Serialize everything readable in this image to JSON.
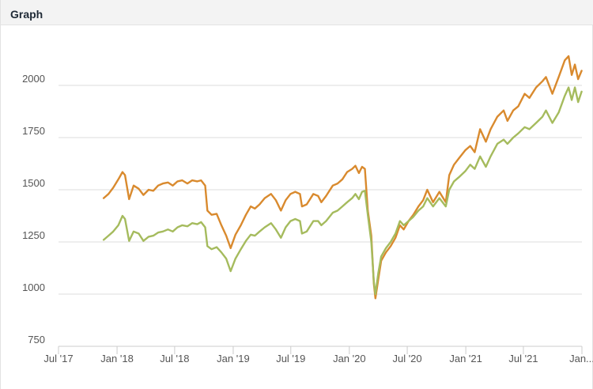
{
  "panel": {
    "title": "Graph"
  },
  "chart_data": {
    "type": "line",
    "title": "",
    "xlabel": "",
    "ylabel": "",
    "ylim": [
      750,
      2250
    ],
    "xlim": [
      "2017-07-01",
      "2022-01-01"
    ],
    "y_ticks": [
      {
        "value": 750,
        "label": "750"
      },
      {
        "value": 1000,
        "label": "1000"
      },
      {
        "value": 1250,
        "label": "1250"
      },
      {
        "value": 1500,
        "label": "1500"
      },
      {
        "value": 1750,
        "label": "1750"
      },
      {
        "value": 2000,
        "label": "2000"
      }
    ],
    "x_ticks": [
      {
        "date": "2017-07-01",
        "label": "Jul '17"
      },
      {
        "date": "2018-01-01",
        "label": "Jan '18"
      },
      {
        "date": "2018-07-01",
        "label": "Jul '18"
      },
      {
        "date": "2019-01-01",
        "label": "Jan '19"
      },
      {
        "date": "2019-07-01",
        "label": "Jul '19"
      },
      {
        "date": "2020-01-01",
        "label": "Jan '20"
      },
      {
        "date": "2020-07-01",
        "label": "Jul '20"
      },
      {
        "date": "2021-01-01",
        "label": "Jan '21"
      },
      {
        "date": "2021-07-01",
        "label": "Jul '21"
      },
      {
        "date": "2022-01-01",
        "label": "Jan..."
      }
    ],
    "grid": true,
    "legend": "none",
    "series": [
      {
        "color": "#d98a2e",
        "points": [
          [
            "2017-11-20",
            1460
          ],
          [
            "2017-12-05",
            1480
          ],
          [
            "2017-12-20",
            1510
          ],
          [
            "2018-01-05",
            1550
          ],
          [
            "2018-01-18",
            1585
          ],
          [
            "2018-01-26",
            1570
          ],
          [
            "2018-02-08",
            1455
          ],
          [
            "2018-02-22",
            1520
          ],
          [
            "2018-03-10",
            1505
          ],
          [
            "2018-03-25",
            1475
          ],
          [
            "2018-04-10",
            1500
          ],
          [
            "2018-04-25",
            1495
          ],
          [
            "2018-05-10",
            1520
          ],
          [
            "2018-05-25",
            1530
          ],
          [
            "2018-06-10",
            1535
          ],
          [
            "2018-06-25",
            1520
          ],
          [
            "2018-07-10",
            1540
          ],
          [
            "2018-07-25",
            1545
          ],
          [
            "2018-08-10",
            1530
          ],
          [
            "2018-08-25",
            1545
          ],
          [
            "2018-09-10",
            1540
          ],
          [
            "2018-09-22",
            1545
          ],
          [
            "2018-10-05",
            1520
          ],
          [
            "2018-10-12",
            1400
          ],
          [
            "2018-10-25",
            1380
          ],
          [
            "2018-11-10",
            1385
          ],
          [
            "2018-11-25",
            1330
          ],
          [
            "2018-12-10",
            1280
          ],
          [
            "2018-12-24",
            1220
          ],
          [
            "2019-01-08",
            1285
          ],
          [
            "2019-01-25",
            1330
          ],
          [
            "2019-02-10",
            1380
          ],
          [
            "2019-02-25",
            1420
          ],
          [
            "2019-03-10",
            1410
          ],
          [
            "2019-03-25",
            1430
          ],
          [
            "2019-04-10",
            1460
          ],
          [
            "2019-04-30",
            1480
          ],
          [
            "2019-05-15",
            1450
          ],
          [
            "2019-05-31",
            1400
          ],
          [
            "2019-06-15",
            1450
          ],
          [
            "2019-06-30",
            1480
          ],
          [
            "2019-07-15",
            1490
          ],
          [
            "2019-07-30",
            1480
          ],
          [
            "2019-08-05",
            1420
          ],
          [
            "2019-08-20",
            1430
          ],
          [
            "2019-09-10",
            1480
          ],
          [
            "2019-09-25",
            1470
          ],
          [
            "2019-10-05",
            1440
          ],
          [
            "2019-10-20",
            1470
          ],
          [
            "2019-11-10",
            1520
          ],
          [
            "2019-11-25",
            1530
          ],
          [
            "2019-12-10",
            1550
          ],
          [
            "2019-12-25",
            1585
          ],
          [
            "2020-01-10",
            1600
          ],
          [
            "2020-01-20",
            1615
          ],
          [
            "2020-01-31",
            1580
          ],
          [
            "2020-02-10",
            1610
          ],
          [
            "2020-02-19",
            1600
          ],
          [
            "2020-02-28",
            1400
          ],
          [
            "2020-03-10",
            1280
          ],
          [
            "2020-03-18",
            1050
          ],
          [
            "2020-03-23",
            980
          ],
          [
            "2020-04-01",
            1070
          ],
          [
            "2020-04-10",
            1160
          ],
          [
            "2020-04-25",
            1200
          ],
          [
            "2020-05-10",
            1230
          ],
          [
            "2020-05-25",
            1270
          ],
          [
            "2020-06-08",
            1330
          ],
          [
            "2020-06-20",
            1310
          ],
          [
            "2020-07-05",
            1350
          ],
          [
            "2020-07-20",
            1380
          ],
          [
            "2020-08-05",
            1420
          ],
          [
            "2020-08-20",
            1450
          ],
          [
            "2020-09-02",
            1500
          ],
          [
            "2020-09-20",
            1440
          ],
          [
            "2020-10-10",
            1490
          ],
          [
            "2020-10-30",
            1440
          ],
          [
            "2020-11-10",
            1570
          ],
          [
            "2020-11-25",
            1620
          ],
          [
            "2020-12-10",
            1650
          ],
          [
            "2020-12-31",
            1690
          ],
          [
            "2021-01-15",
            1710
          ],
          [
            "2021-01-29",
            1680
          ],
          [
            "2021-02-15",
            1790
          ],
          [
            "2021-03-05",
            1730
          ],
          [
            "2021-03-20",
            1790
          ],
          [
            "2021-04-10",
            1850
          ],
          [
            "2021-04-30",
            1880
          ],
          [
            "2021-05-12",
            1830
          ],
          [
            "2021-05-30",
            1880
          ],
          [
            "2021-06-15",
            1900
          ],
          [
            "2021-07-05",
            1960
          ],
          [
            "2021-07-20",
            1940
          ],
          [
            "2021-08-10",
            1990
          ],
          [
            "2021-08-30",
            2020
          ],
          [
            "2021-09-10",
            2040
          ],
          [
            "2021-09-30",
            1960
          ],
          [
            "2021-10-20",
            2040
          ],
          [
            "2021-11-08",
            2120
          ],
          [
            "2021-11-20",
            2140
          ],
          [
            "2021-11-30",
            2050
          ],
          [
            "2021-12-10",
            2100
          ],
          [
            "2021-12-20",
            2030
          ],
          [
            "2021-12-31",
            2070
          ]
        ]
      },
      {
        "color": "#a5bb5d",
        "points": [
          [
            "2017-11-20",
            1260
          ],
          [
            "2017-12-05",
            1280
          ],
          [
            "2017-12-20",
            1300
          ],
          [
            "2018-01-05",
            1330
          ],
          [
            "2018-01-18",
            1375
          ],
          [
            "2018-01-26",
            1360
          ],
          [
            "2018-02-08",
            1255
          ],
          [
            "2018-02-22",
            1300
          ],
          [
            "2018-03-10",
            1290
          ],
          [
            "2018-03-25",
            1255
          ],
          [
            "2018-04-10",
            1275
          ],
          [
            "2018-04-25",
            1280
          ],
          [
            "2018-05-10",
            1295
          ],
          [
            "2018-05-25",
            1300
          ],
          [
            "2018-06-10",
            1310
          ],
          [
            "2018-06-25",
            1300
          ],
          [
            "2018-07-10",
            1320
          ],
          [
            "2018-07-25",
            1330
          ],
          [
            "2018-08-10",
            1325
          ],
          [
            "2018-08-25",
            1340
          ],
          [
            "2018-09-10",
            1335
          ],
          [
            "2018-09-22",
            1345
          ],
          [
            "2018-10-05",
            1320
          ],
          [
            "2018-10-12",
            1230
          ],
          [
            "2018-10-25",
            1215
          ],
          [
            "2018-11-10",
            1225
          ],
          [
            "2018-11-25",
            1200
          ],
          [
            "2018-12-10",
            1170
          ],
          [
            "2018-12-24",
            1110
          ],
          [
            "2019-01-08",
            1170
          ],
          [
            "2019-01-25",
            1215
          ],
          [
            "2019-02-10",
            1255
          ],
          [
            "2019-02-25",
            1285
          ],
          [
            "2019-03-10",
            1280
          ],
          [
            "2019-03-25",
            1300
          ],
          [
            "2019-04-10",
            1320
          ],
          [
            "2019-04-30",
            1340
          ],
          [
            "2019-05-15",
            1310
          ],
          [
            "2019-05-31",
            1270
          ],
          [
            "2019-06-15",
            1320
          ],
          [
            "2019-06-30",
            1350
          ],
          [
            "2019-07-15",
            1360
          ],
          [
            "2019-07-30",
            1350
          ],
          [
            "2019-08-05",
            1290
          ],
          [
            "2019-08-20",
            1300
          ],
          [
            "2019-09-10",
            1350
          ],
          [
            "2019-09-25",
            1350
          ],
          [
            "2019-10-05",
            1330
          ],
          [
            "2019-10-20",
            1350
          ],
          [
            "2019-11-10",
            1390
          ],
          [
            "2019-11-25",
            1400
          ],
          [
            "2019-12-10",
            1420
          ],
          [
            "2019-12-25",
            1440
          ],
          [
            "2020-01-10",
            1460
          ],
          [
            "2020-01-20",
            1480
          ],
          [
            "2020-01-31",
            1455
          ],
          [
            "2020-02-10",
            1490
          ],
          [
            "2020-02-19",
            1495
          ],
          [
            "2020-02-28",
            1380
          ],
          [
            "2020-03-10",
            1250
          ],
          [
            "2020-03-18",
            1060
          ],
          [
            "2020-03-23",
            1000
          ],
          [
            "2020-04-01",
            1100
          ],
          [
            "2020-04-10",
            1180
          ],
          [
            "2020-04-25",
            1220
          ],
          [
            "2020-05-10",
            1250
          ],
          [
            "2020-05-25",
            1290
          ],
          [
            "2020-06-08",
            1350
          ],
          [
            "2020-06-20",
            1330
          ],
          [
            "2020-07-05",
            1350
          ],
          [
            "2020-07-20",
            1370
          ],
          [
            "2020-08-05",
            1400
          ],
          [
            "2020-08-20",
            1420
          ],
          [
            "2020-09-02",
            1460
          ],
          [
            "2020-09-20",
            1420
          ],
          [
            "2020-10-10",
            1460
          ],
          [
            "2020-10-30",
            1420
          ],
          [
            "2020-11-10",
            1500
          ],
          [
            "2020-11-25",
            1540
          ],
          [
            "2020-12-10",
            1560
          ],
          [
            "2020-12-31",
            1590
          ],
          [
            "2021-01-15",
            1620
          ],
          [
            "2021-01-29",
            1600
          ],
          [
            "2021-02-15",
            1660
          ],
          [
            "2021-03-05",
            1610
          ],
          [
            "2021-03-20",
            1660
          ],
          [
            "2021-04-10",
            1720
          ],
          [
            "2021-04-30",
            1740
          ],
          [
            "2021-05-12",
            1720
          ],
          [
            "2021-05-30",
            1750
          ],
          [
            "2021-06-15",
            1770
          ],
          [
            "2021-07-05",
            1800
          ],
          [
            "2021-07-20",
            1790
          ],
          [
            "2021-08-10",
            1820
          ],
          [
            "2021-08-30",
            1850
          ],
          [
            "2021-09-10",
            1880
          ],
          [
            "2021-09-30",
            1820
          ],
          [
            "2021-10-20",
            1870
          ],
          [
            "2021-11-08",
            1950
          ],
          [
            "2021-11-20",
            1990
          ],
          [
            "2021-11-30",
            1930
          ],
          [
            "2021-12-10",
            1990
          ],
          [
            "2021-12-20",
            1920
          ],
          [
            "2021-12-31",
            1970
          ]
        ]
      }
    ]
  }
}
